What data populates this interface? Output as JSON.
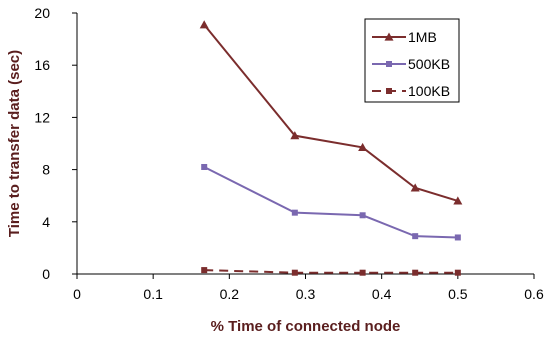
{
  "chart_data": {
    "type": "line",
    "title": "",
    "xlabel": "% Time of connected node",
    "ylabel": "Time to transfer data (sec)",
    "xlim": [
      0,
      0.6
    ],
    "ylim": [
      0,
      20
    ],
    "xticks": [
      "0",
      "0.1",
      "0.2",
      "0.3",
      "0.4",
      "0.5",
      "0.6"
    ],
    "xtick_values": [
      0,
      0.1,
      0.2,
      0.3,
      0.4,
      0.5,
      0.6
    ],
    "yticks": [
      "0",
      "4",
      "8",
      "12",
      "16",
      "20"
    ],
    "ytick_values": [
      0,
      4,
      8,
      12,
      16,
      20
    ],
    "grid": false,
    "legend_position": "top-right",
    "series": [
      {
        "name": "1MB",
        "color": "#7b2d2d",
        "marker": "triangle",
        "dash": "solid",
        "x": [
          0.167,
          0.286,
          0.375,
          0.444,
          0.5
        ],
        "y": [
          19.1,
          10.6,
          9.7,
          6.6,
          5.6
        ]
      },
      {
        "name": "500KB",
        "color": "#7a68b0",
        "marker": "square",
        "dash": "solid",
        "x": [
          0.167,
          0.286,
          0.375,
          0.444,
          0.5
        ],
        "y": [
          8.2,
          4.7,
          4.5,
          2.9,
          2.8
        ]
      },
      {
        "name": "100KB",
        "color": "#7b2d2d",
        "marker": "square",
        "dash": "dashed",
        "x": [
          0.167,
          0.286,
          0.375,
          0.444,
          0.5
        ],
        "y": [
          0.3,
          0.1,
          0.1,
          0.1,
          0.1
        ]
      }
    ]
  }
}
